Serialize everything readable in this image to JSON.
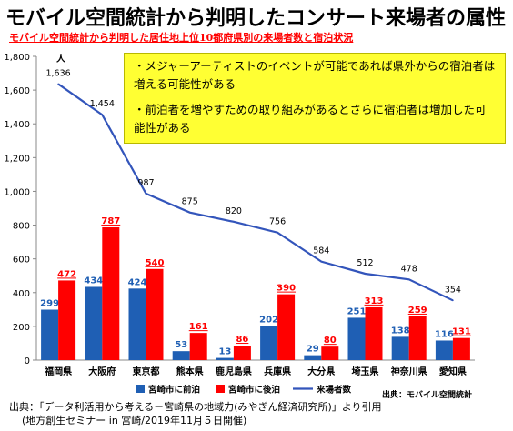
{
  "header": {
    "title": "モバイル空間統計から判明したコンサート来場者の属性",
    "subtitle": "モバイル空間統計から判明した居住地上位10都府県別の来場者数と宿泊状況"
  },
  "notes": [
    "・メジャーアーティストのイベントが可能であれば県外からの宿泊者は増える可能性がある",
    "・前泊者を増やすための取り組みがあるとさらに宿泊者は増加した可能性がある"
  ],
  "chart_data": {
    "type": "bar",
    "categories": [
      "福岡県",
      "大阪府",
      "東京都",
      "熊本県",
      "鹿児島県",
      "兵庫県",
      "大分県",
      "埼玉県",
      "神奈川県",
      "愛知県"
    ],
    "series": [
      {
        "name": "宮崎市に前泊",
        "type": "bar",
        "color": "#1f5fb4",
        "values": [
          299,
          434,
          424,
          53,
          13,
          202,
          29,
          251,
          138,
          116
        ]
      },
      {
        "name": "宮崎市に後泊",
        "type": "bar",
        "color": "#ff0000",
        "values": [
          472,
          787,
          540,
          161,
          86,
          390,
          80,
          313,
          259,
          131
        ]
      },
      {
        "name": "来場者数",
        "type": "line",
        "color": "#3355bb",
        "values": [
          1636,
          1454,
          987,
          875,
          820,
          756,
          584,
          512,
          478,
          354
        ]
      }
    ],
    "ylim": [
      0,
      1800
    ],
    "yticks": [
      0,
      200,
      400,
      600,
      800,
      1000,
      1200,
      1400,
      1600,
      1800
    ],
    "ytick_labels": [
      "0",
      "200",
      "400",
      "600",
      "800",
      "1,000",
      "1,200",
      "1,400",
      "1,600",
      "1,800"
    ],
    "y_unit": "人",
    "line_labels": [
      "1,636",
      "1,454",
      "987",
      "875",
      "820",
      "756",
      "584",
      "512",
      "478",
      "354"
    ],
    "grid": false,
    "legend_placement": "bottom"
  },
  "source_note": "出典：モバイル空間統計",
  "footer": {
    "line1": "出典：「データ利活用から考える－宮崎県の地域力(みやぎん経済研究所)」より引用",
    "line2": "(地方創生セミナー in 宮崎/2019年11月５日開催)"
  }
}
